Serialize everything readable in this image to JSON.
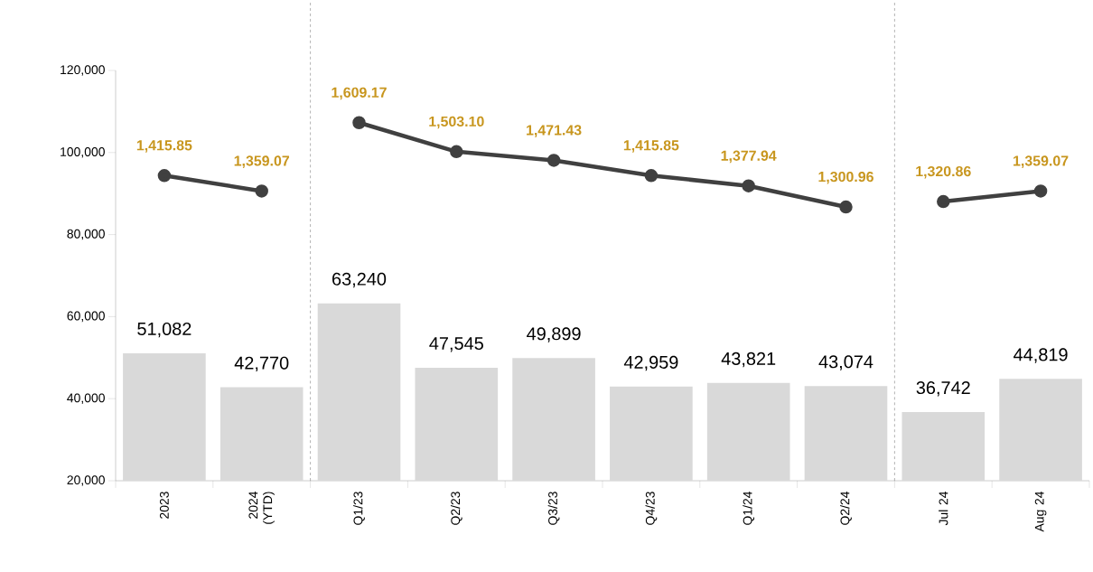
{
  "chart_data": {
    "type": "bar",
    "categories": [
      "2023",
      "2024 (YTD)",
      "Q1/23",
      "Q2/23",
      "Q3/23",
      "Q4/23",
      "Q1/24",
      "Q2/24",
      "Jul 24",
      "Aug 24"
    ],
    "series": [
      {
        "color": "#d9d9d9",
        "values": [
          51082,
          42770,
          63240,
          47545,
          49899,
          42959,
          43821,
          43074,
          36742,
          44819
        ],
        "value_labels": [
          "51,082",
          "42,770",
          "63,240",
          "47,545",
          "49,899",
          "42,959",
          "43,821",
          "43,074",
          "36,742",
          "44,819"
        ]
      },
      {
        "type": "line",
        "axis": "y2",
        "color": "#404040",
        "values": [
          1415.85,
          1359.07,
          null,
          null,
          null,
          null,
          null,
          null,
          null,
          null
        ],
        "value_labels": [
          "1,415.85",
          "1,359.07",
          null,
          null,
          null,
          null,
          null,
          null,
          null,
          null
        ]
      },
      {
        "type": "line",
        "axis": "y2",
        "color": "#404040",
        "values": [
          null,
          null,
          1609.17,
          1503.1,
          1471.43,
          1415.85,
          1377.94,
          1300.96,
          null,
          null
        ],
        "value_labels": [
          null,
          null,
          "1,609.17",
          "1,503.10",
          "1,471.43",
          "1,415.85",
          "1,377.94",
          "1,300.96",
          null,
          null
        ]
      },
      {
        "type": "line",
        "axis": "y2",
        "color": "#404040",
        "values": [
          null,
          null,
          null,
          null,
          null,
          null,
          null,
          null,
          1320.86,
          1359.07
        ],
        "value_labels": [
          null,
          null,
          null,
          null,
          null,
          null,
          null,
          null,
          "1,320.86",
          "1,359.07"
        ]
      }
    ],
    "ylim": [
      20000,
      120000
    ],
    "yticks": [
      {
        "value": 20000,
        "label": "20,000"
      },
      {
        "value": 40000,
        "label": "40,000"
      },
      {
        "value": 60000,
        "label": "60,000"
      },
      {
        "value": 80000,
        "label": "80,000"
      },
      {
        "value": 100000,
        "label": "100,000"
      },
      {
        "value": 120000,
        "label": "120,000"
      }
    ],
    "y2lim": [
      300,
      1800
    ],
    "marker": "circle",
    "line_style": "solid",
    "grid": false,
    "legend": false
  }
}
